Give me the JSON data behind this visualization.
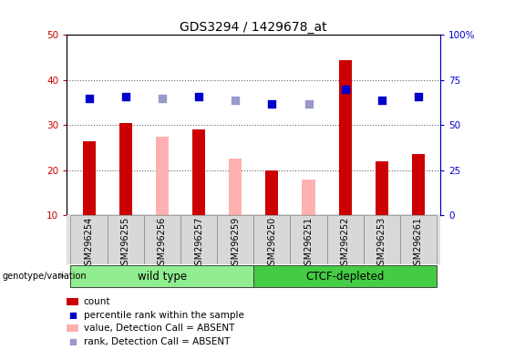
{
  "title": "GDS3294 / 1429678_at",
  "samples": [
    "GSM296254",
    "GSM296255",
    "GSM296256",
    "GSM296257",
    "GSM296259",
    "GSM296250",
    "GSM296251",
    "GSM296252",
    "GSM296253",
    "GSM296261"
  ],
  "count_values": [
    26.5,
    30.5,
    null,
    29.0,
    null,
    20.0,
    null,
    44.5,
    22.0,
    23.5
  ],
  "count_absent_values": [
    null,
    null,
    27.5,
    null,
    22.5,
    null,
    18.0,
    null,
    null,
    null
  ],
  "rank_values": [
    65.0,
    66.0,
    null,
    66.0,
    null,
    62.0,
    null,
    70.0,
    64.0,
    66.0
  ],
  "rank_absent_values": [
    null,
    null,
    65.0,
    null,
    64.0,
    null,
    62.0,
    null,
    null,
    null
  ],
  "groups": [
    {
      "label": "wild type",
      "start": 0,
      "end": 5,
      "color": "#90EE90"
    },
    {
      "label": "CTCF-depleted",
      "start": 5,
      "end": 10,
      "color": "#44CC44"
    }
  ],
  "ylim_left": [
    10,
    50
  ],
  "ylim_right": [
    0,
    100
  ],
  "yticks_left": [
    10,
    20,
    30,
    40,
    50
  ],
  "yticks_right": [
    0,
    25,
    50,
    75,
    100
  ],
  "ytick_labels_left": [
    "10",
    "20",
    "30",
    "40",
    "50"
  ],
  "ytick_labels_right": [
    "0",
    "25",
    "50",
    "75",
    "100%"
  ],
  "bar_color_present": "#CC0000",
  "bar_color_absent": "#FFB0B0",
  "dot_color_present": "#0000CC",
  "dot_color_absent": "#9999CC",
  "bar_width": 0.35,
  "dot_size": 35,
  "legend_items": [
    {
      "label": "count",
      "color": "#CC0000",
      "type": "bar"
    },
    {
      "label": "percentile rank within the sample",
      "color": "#0000CC",
      "type": "dot"
    },
    {
      "label": "value, Detection Call = ABSENT",
      "color": "#FFB0B0",
      "type": "bar"
    },
    {
      "label": "rank, Detection Call = ABSENT",
      "color": "#9999CC",
      "type": "dot"
    }
  ],
  "title_fontsize": 10,
  "tick_fontsize": 7.5,
  "group_label_fontsize": 8.5,
  "label_fontsize": 7,
  "background_color": "#ffffff"
}
